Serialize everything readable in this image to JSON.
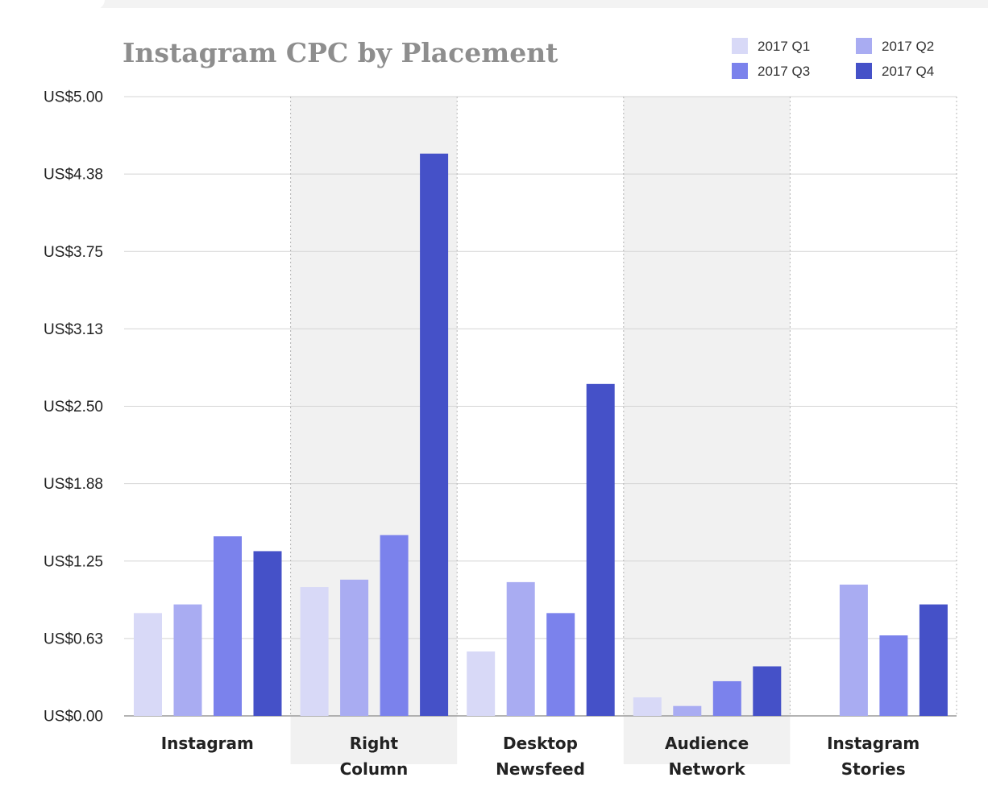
{
  "chart_data": {
    "type": "bar",
    "title": "Instagram CPC by Placement",
    "xlabel": "",
    "ylabel": "",
    "ylim": [
      0,
      5
    ],
    "yticks": [
      "US$0.00",
      "US$0.63",
      "US$1.25",
      "US$1.88",
      "US$2.50",
      "US$3.13",
      "US$3.75",
      "US$4.38",
      "US$5.00"
    ],
    "categories": [
      [
        "Instagram"
      ],
      [
        "Right",
        "Column"
      ],
      [
        "Desktop",
        "Newsfeed"
      ],
      [
        "Audience",
        "Network"
      ],
      [
        "Instagram",
        "Stories"
      ]
    ],
    "series": [
      {
        "name": "2017 Q1",
        "color": "#d8d9f7",
        "values": [
          0.83,
          1.04,
          0.52,
          0.15,
          null
        ]
      },
      {
        "name": "2017 Q2",
        "color": "#a9acf2",
        "values": [
          0.9,
          1.1,
          1.08,
          0.08,
          1.06
        ]
      },
      {
        "name": "2017 Q3",
        "color": "#7b82ec",
        "values": [
          1.45,
          1.46,
          0.83,
          0.28,
          0.65
        ]
      },
      {
        "name": "2017 Q4",
        "color": "#4551c8",
        "values": [
          1.33,
          4.54,
          2.68,
          0.4,
          0.9
        ]
      }
    ],
    "grid": true,
    "legend_position": "top-right",
    "shaded_categories": [
      1,
      3
    ]
  }
}
